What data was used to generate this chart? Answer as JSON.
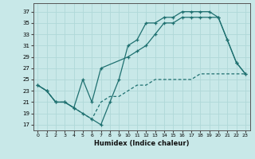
{
  "xlabel": "Humidex (Indice chaleur)",
  "xlim": [
    -0.5,
    23.5
  ],
  "ylim": [
    16,
    38.5
  ],
  "xticks": [
    0,
    1,
    2,
    3,
    4,
    5,
    6,
    7,
    8,
    9,
    10,
    11,
    12,
    13,
    14,
    15,
    16,
    17,
    18,
    19,
    20,
    21,
    22,
    23
  ],
  "yticks": [
    17,
    19,
    21,
    23,
    25,
    27,
    29,
    31,
    33,
    35,
    37
  ],
  "bg_color": "#c8e8e8",
  "line_color": "#1e7070",
  "grid_color": "#b0d8d8",
  "line1_x": [
    0,
    1,
    2,
    3,
    4,
    5,
    6,
    7,
    8,
    9,
    10,
    11,
    12,
    13,
    14,
    15,
    16,
    17,
    18,
    19,
    20,
    21,
    22,
    23
  ],
  "line1_y": [
    24,
    23,
    21,
    21,
    20,
    19,
    18,
    17,
    21,
    25,
    31,
    32,
    35,
    35,
    36,
    36,
    37,
    37,
    37,
    37,
    36,
    32,
    28,
    26
  ],
  "line2_x": [
    0,
    1,
    2,
    3,
    4,
    5,
    6,
    7,
    10,
    11,
    12,
    13,
    14,
    15,
    16,
    17,
    18,
    19,
    20,
    21,
    22,
    23
  ],
  "line2_y": [
    24,
    23,
    21,
    21,
    20,
    25,
    21,
    27,
    29,
    30,
    31,
    33,
    35,
    35,
    36,
    36,
    36,
    36,
    36,
    32,
    28,
    26
  ],
  "line3_x": [
    0,
    1,
    2,
    3,
    4,
    5,
    6,
    7,
    8,
    9,
    10,
    11,
    12,
    13,
    14,
    15,
    16,
    17,
    18,
    19,
    20,
    21,
    22,
    23
  ],
  "line3_y": [
    24,
    23,
    21,
    21,
    20,
    19,
    18,
    21,
    22,
    22,
    23,
    24,
    24,
    25,
    25,
    25,
    25,
    25,
    26,
    26,
    26,
    26,
    26,
    26
  ]
}
